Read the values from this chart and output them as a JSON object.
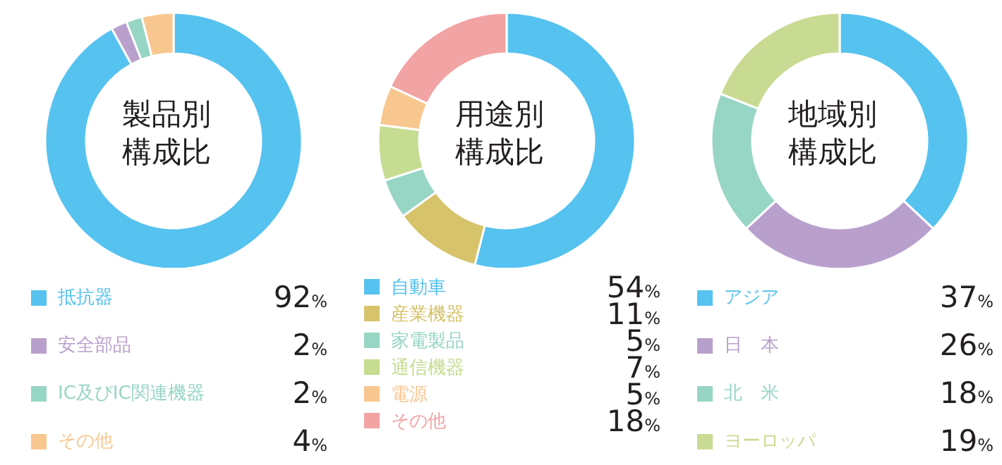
{
  "chart_data": [
    {
      "type": "donut",
      "title": "製品別構成比",
      "categories": [
        "抵抗器",
        "安全部品",
        "IC及びIC関連機器",
        "その他"
      ],
      "values": [
        92,
        2,
        2,
        4
      ],
      "colors": [
        "#56c2ef",
        "#b9a0cc",
        "#97d5c5",
        "#f8c78f"
      ],
      "value_labels": [
        "92%",
        "2%",
        "2%",
        "4%"
      ],
      "legend": "bottom"
    },
    {
      "type": "donut",
      "title": "用途別構成比",
      "categories": [
        "自動車",
        "産業機器",
        "家電製品",
        "通信機器",
        "電源",
        "その他"
      ],
      "values": [
        54,
        11,
        5,
        7,
        5,
        18
      ],
      "colors": [
        "#56c2ef",
        "#d6c36a",
        "#97d5c5",
        "#c5dc91",
        "#f8c78f",
        "#f2a3a3"
      ],
      "value_labels": [
        "54%",
        "11%",
        "5%",
        "7%",
        "5%",
        "18%"
      ],
      "legend": "bottom"
    },
    {
      "type": "donut",
      "title": "地域別構成比",
      "categories": [
        "アジア",
        "日　本",
        "北　米",
        "ヨーロッパ"
      ],
      "values": [
        37,
        26,
        18,
        19
      ],
      "colors": [
        "#56c2ef",
        "#b9a0cc",
        "#97d5c5",
        "#c9db93"
      ],
      "value_labels": [
        "37%",
        "26%",
        "18%",
        "19%"
      ],
      "legend": "bottom"
    }
  ]
}
